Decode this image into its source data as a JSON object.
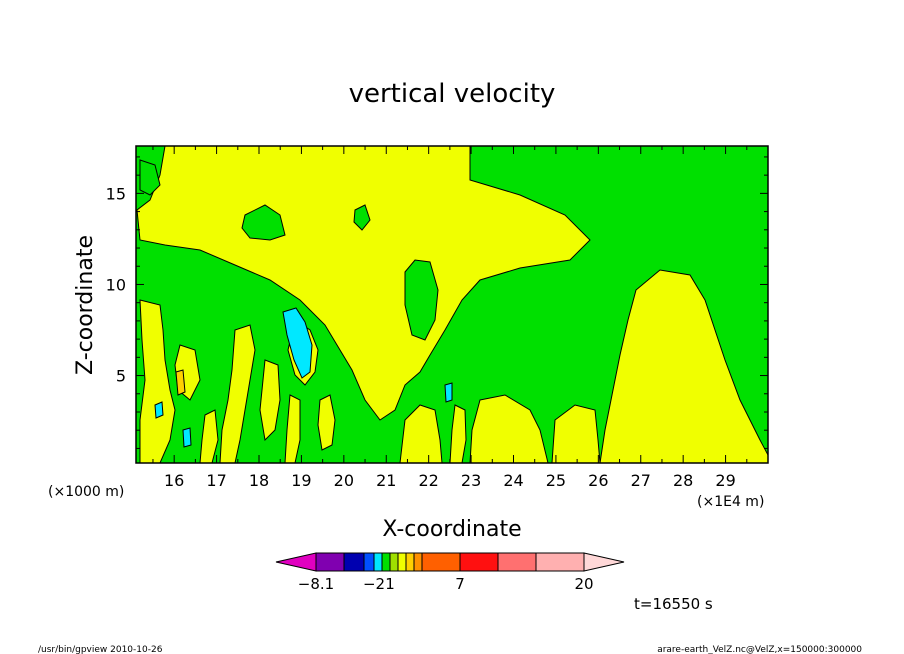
{
  "chart_data": {
    "type": "heatmap",
    "title": "vertical velocity",
    "xlabel": "X-coordinate",
    "ylabel": "Z-coordinate",
    "x_unit_note": "(×1E4 m)",
    "y_unit_note": "(×1000 m)",
    "xlim": [
      15.1,
      30.0
    ],
    "ylim": [
      0.2,
      17.6
    ],
    "x_ticks": [
      "16",
      "17",
      "18",
      "19",
      "20",
      "21",
      "22",
      "23",
      "24",
      "25",
      "26",
      "27",
      "28",
      "29"
    ],
    "y_ticks": [
      "5",
      "10",
      "15"
    ],
    "timestamp": "t=16550 s",
    "colorbar": {
      "labels": [
        "−8.1",
        "−2",
        "1",
        "7",
        "20"
      ],
      "colors": [
        "#e000c0",
        "#8000b0",
        "#0000b0",
        "#0050ff",
        "#00e8ff",
        "#00e000",
        "#a0e000",
        "#f0ff00",
        "#ffd000",
        "#ff9000",
        "#ff6000",
        "#ff1010",
        "#ff7070",
        "#ffb0b0",
        "#ffd8d8"
      ]
    },
    "field_colors": {
      "negative": "#00e000",
      "positive": "#f0ff00",
      "strong_negative": "#00e8ff",
      "strong_positive": "#ffd000"
    },
    "footer": {
      "program": "/usr/bin/gpview   2010-10-26",
      "source": "arare-earth_VelZ.nc@VelZ,x=150000:300000"
    }
  }
}
